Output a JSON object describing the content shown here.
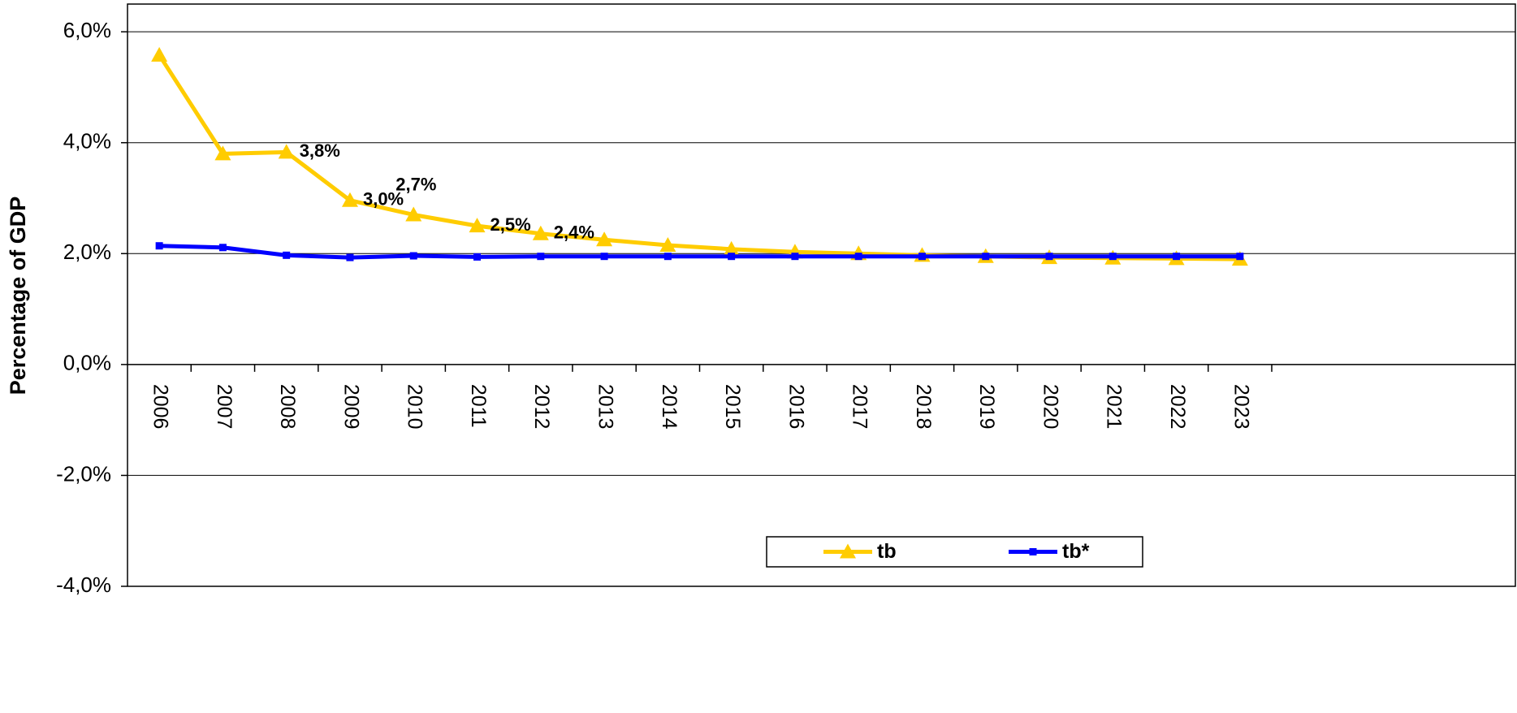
{
  "chart_data": {
    "type": "line",
    "y_axis_label": "Percentage of GDP",
    "categories": [
      "2006",
      "2007",
      "2008",
      "2009",
      "2010",
      "2011",
      "2012",
      "2013",
      "2014",
      "2015",
      "2016",
      "2017",
      "2018",
      "2019",
      "2020",
      "2021",
      "2022",
      "2023"
    ],
    "series": [
      {
        "name": "tb",
        "color": "#FFCC00",
        "marker": "triangle",
        "values": [
          5.58,
          3.8,
          3.83,
          2.96,
          2.7,
          2.5,
          2.36,
          2.25,
          2.15,
          2.08,
          2.03,
          2.0,
          1.97,
          1.95,
          1.93,
          1.92,
          1.91,
          1.9
        ],
        "value_labels": [
          null,
          null,
          "3,8%",
          "3,0%",
          "2,7%",
          "2,5%",
          "2,4%",
          null,
          null,
          null,
          null,
          null,
          null,
          null,
          null,
          null,
          null,
          null
        ]
      },
      {
        "name": "tb*",
        "color": "#0000FF",
        "marker": "square",
        "values": [
          2.14,
          2.11,
          1.97,
          1.93,
          1.96,
          1.94,
          1.95,
          1.95,
          1.95,
          1.95,
          1.95,
          1.95,
          1.95,
          1.95,
          1.95,
          1.95,
          1.95,
          1.95
        ]
      }
    ],
    "ylim": [
      -4,
      6.5
    ],
    "yticks": [
      {
        "value": -4,
        "label": "-4,0%"
      },
      {
        "value": -2,
        "label": "-2,0%"
      },
      {
        "value": 0,
        "label": "0,0%"
      },
      {
        "value": 2,
        "label": "2,0%"
      },
      {
        "value": 4,
        "label": "4,0%"
      },
      {
        "value": 6,
        "label": "6,0%"
      }
    ],
    "grid": true,
    "legend": "bottom-right"
  }
}
